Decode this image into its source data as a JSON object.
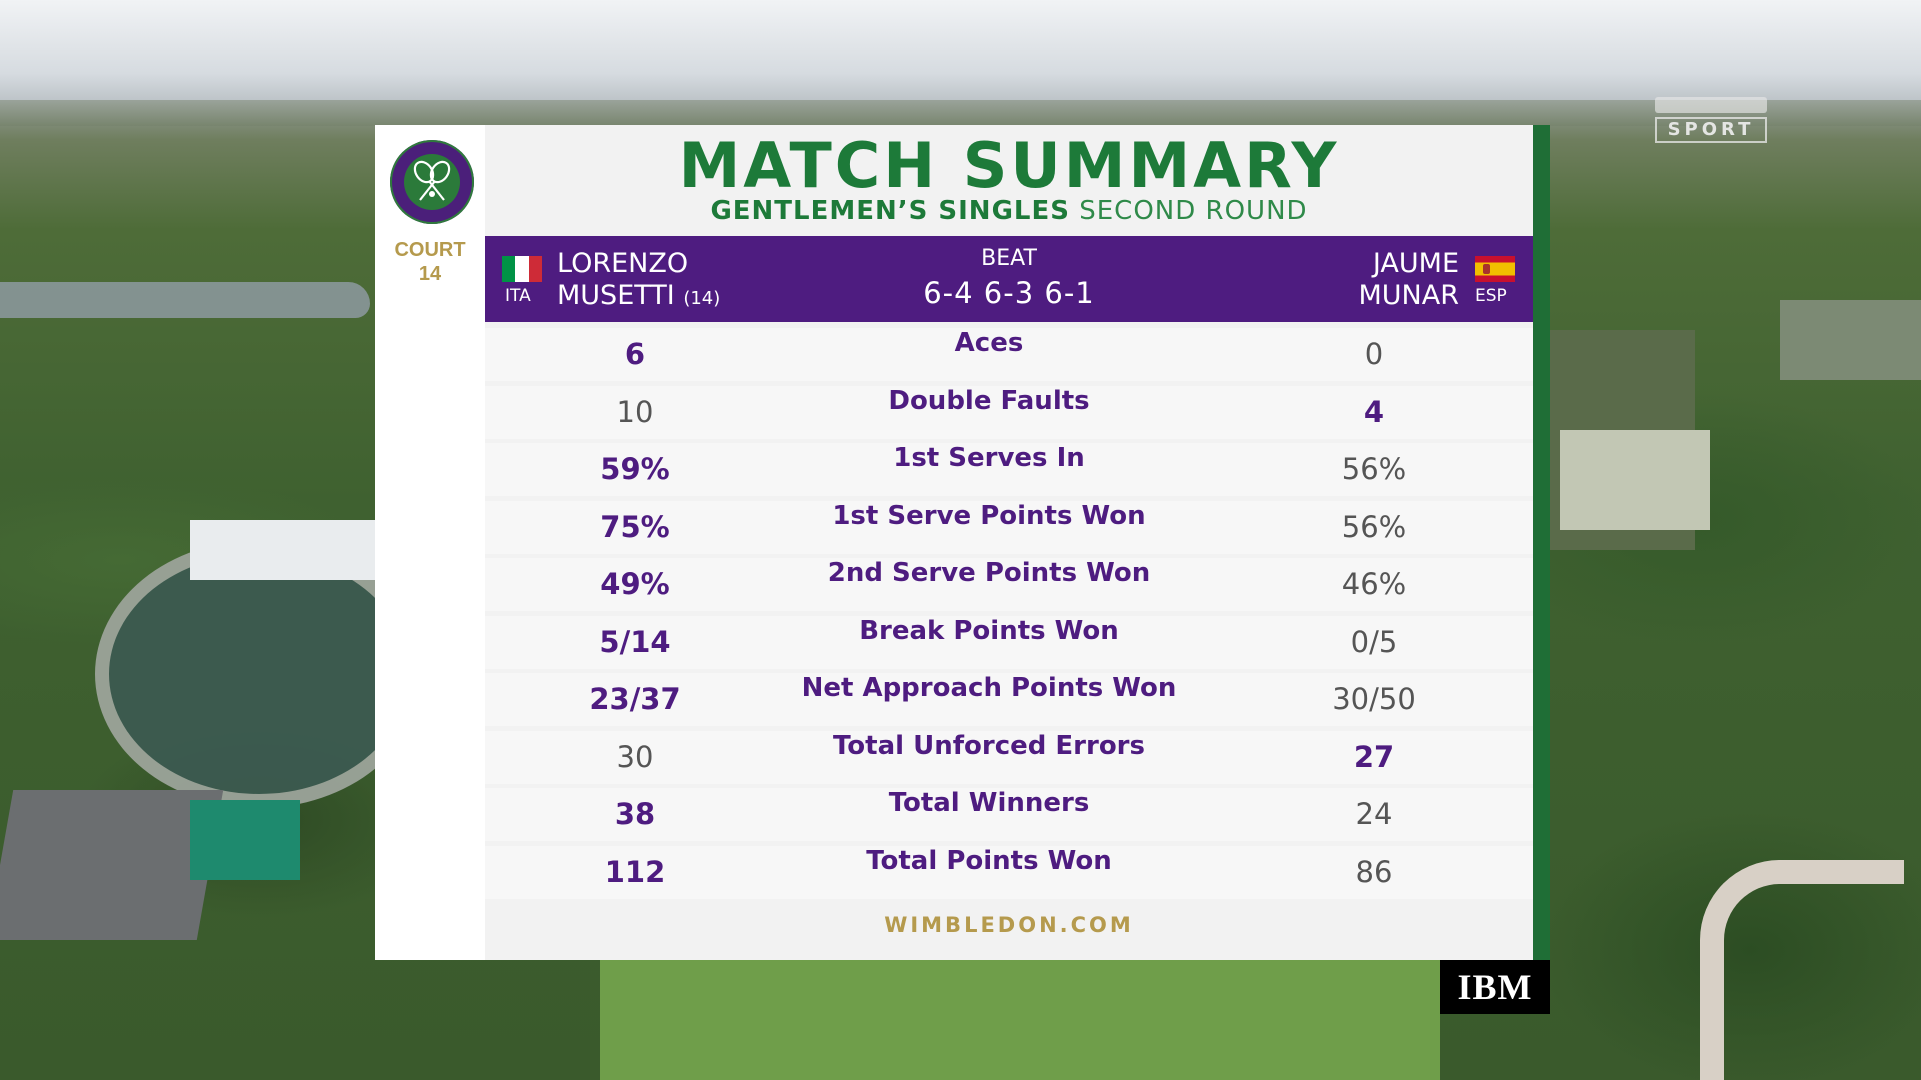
{
  "broadcaster": {
    "name": "SPORT"
  },
  "event": {
    "logo_icon": "wimbledon-crossed-rackets-icon",
    "court_label": "COURT",
    "court_number": "14"
  },
  "header": {
    "title": "MATCH SUMMARY",
    "subtitle_bold": "GENTLEMEN’S SINGLES",
    "subtitle_light": "SECOND ROUND"
  },
  "match": {
    "player1": {
      "first": "LORENZO",
      "last": "MUSETTI",
      "seed": "(14)",
      "country": "ITA",
      "flag_colors": [
        "#009246",
        "#ffffff",
        "#ce2b37"
      ]
    },
    "player2": {
      "first": "JAUME",
      "last": "MUNAR",
      "country": "ESP",
      "flag_colors": [
        "#c8102e",
        "#f1bf00"
      ]
    },
    "result": "BEAT",
    "score": "6-4 6-3 6-1"
  },
  "stats": [
    {
      "label": "Aces",
      "p1": "6",
      "p2": "0",
      "leader": "p1"
    },
    {
      "label": "Double Faults",
      "p1": "10",
      "p2": "4",
      "leader": "p2"
    },
    {
      "label": "1st Serves In",
      "p1": "59%",
      "p2": "56%",
      "leader": "p1"
    },
    {
      "label": "1st Serve Points Won",
      "p1": "75%",
      "p2": "56%",
      "leader": "p1"
    },
    {
      "label": "2nd Serve Points Won",
      "p1": "49%",
      "p2": "46%",
      "leader": "p1"
    },
    {
      "label": "Break Points Won",
      "p1": "5/14",
      "p2": "0/5",
      "leader": "p1"
    },
    {
      "label": "Net Approach Points Won",
      "p1": "23/37",
      "p2": "30/50",
      "leader": "p1"
    },
    {
      "label": "Total Unforced Errors",
      "p1": "30",
      "p2": "27",
      "leader": "p2"
    },
    {
      "label": "Total Winners",
      "p1": "38",
      "p2": "24",
      "leader": "p1"
    },
    {
      "label": "Total Points Won",
      "p1": "112",
      "p2": "86",
      "leader": "p1"
    }
  ],
  "footer": {
    "url": "WIMBLEDON.COM"
  },
  "sponsor": {
    "name": "IBM"
  },
  "colors": {
    "purple": "#4e1c80",
    "green": "#1d7a39",
    "gold": "#b59a4d"
  }
}
